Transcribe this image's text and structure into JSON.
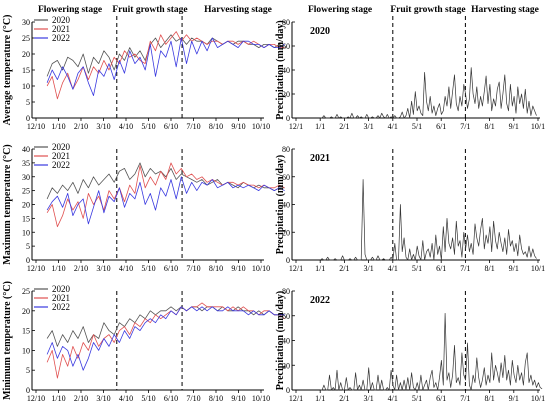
{
  "stage_labels": [
    "Flowering stage",
    "Fruit growth stage",
    "Harvesting stage"
  ],
  "chart_data": [
    {
      "id": "avg",
      "type": "line",
      "ylabel": "Average temperature (°C)",
      "ylim": [
        0,
        30
      ],
      "yticks": [
        0,
        5,
        10,
        15,
        20,
        25,
        30
      ],
      "xticks": [
        "12/10",
        "1/10",
        "2/10",
        "3/10",
        "4/10",
        "5/10",
        "6/10",
        "7/10",
        "8/10",
        "9/10",
        "10/10"
      ],
      "vlines": [
        "3/28",
        "6/25"
      ],
      "series": [
        {
          "name": "2020",
          "color": "#555555",
          "start": "12/25",
          "values": [
            13,
            17,
            18,
            15,
            19,
            18,
            16,
            20,
            14,
            19,
            17,
            21,
            19,
            15,
            20,
            18,
            22,
            19,
            21,
            18,
            23,
            25,
            22,
            24,
            26,
            24,
            25,
            23,
            25,
            24,
            24,
            23,
            25,
            24,
            23,
            24,
            23,
            24,
            24,
            23,
            23,
            22,
            23,
            23,
            22,
            23,
            22
          ]
        },
        {
          "name": "2021",
          "color": "#e05050",
          "start": "12/25",
          "values": [
            10,
            13,
            6,
            11,
            14,
            9,
            12,
            16,
            12,
            16,
            14,
            18,
            15,
            19,
            17,
            21,
            19,
            20,
            18,
            17,
            24,
            21,
            26,
            23,
            25,
            27,
            24,
            26,
            24,
            25,
            24,
            23,
            24,
            24,
            23,
            24,
            24,
            23,
            24,
            23,
            24,
            23,
            22,
            23,
            23,
            22,
            22
          ]
        },
        {
          "name": "2022",
          "color": "#3a3ae0",
          "start": "12/25",
          "values": [
            11,
            15,
            12,
            16,
            13,
            9,
            14,
            16,
            11,
            7,
            15,
            13,
            17,
            12,
            18,
            14,
            21,
            17,
            19,
            15,
            23,
            13,
            21,
            19,
            24,
            16,
            25,
            17,
            24,
            20,
            24,
            21,
            25,
            22,
            23,
            24,
            23,
            22,
            24,
            24,
            23,
            23,
            22,
            23,
            22,
            22,
            23
          ]
        }
      ]
    },
    {
      "id": "max",
      "type": "line",
      "ylabel": "Maximum temperature (°C)",
      "ylim": [
        0,
        40
      ],
      "yticks": [
        0,
        5,
        10,
        15,
        20,
        25,
        30,
        35,
        40
      ],
      "xticks": [
        "12/10",
        "1/10",
        "2/10",
        "3/10",
        "4/10",
        "5/10",
        "6/10",
        "7/10",
        "8/10",
        "9/10",
        "10/10"
      ],
      "vlines": [
        "3/28",
        "6/25"
      ],
      "series": [
        {
          "name": "2020",
          "color": "#555555",
          "start": "12/25",
          "values": [
            22,
            26,
            24,
            27,
            25,
            28,
            24,
            29,
            26,
            30,
            27,
            29,
            31,
            28,
            32,
            33,
            29,
            31,
            35,
            30,
            33,
            31,
            32,
            30,
            33,
            29,
            31,
            30,
            29,
            28,
            29,
            27,
            28,
            29,
            27,
            28,
            27,
            26,
            28,
            27,
            26,
            27,
            26,
            26,
            25,
            26,
            26
          ]
        },
        {
          "name": "2021",
          "color": "#e05050",
          "start": "12/25",
          "values": [
            17,
            20,
            12,
            16,
            22,
            18,
            21,
            15,
            24,
            20,
            23,
            18,
            25,
            22,
            26,
            21,
            27,
            24,
            34,
            26,
            30,
            27,
            32,
            29,
            35,
            31,
            33,
            30,
            31,
            29,
            30,
            28,
            29,
            28,
            27,
            28,
            28,
            27,
            28,
            27,
            27,
            26,
            27,
            26,
            26,
            27,
            26
          ]
        },
        {
          "name": "2022",
          "color": "#3a3ae0",
          "start": "12/25",
          "values": [
            18,
            21,
            23,
            19,
            24,
            16,
            20,
            22,
            13,
            19,
            25,
            17,
            23,
            21,
            26,
            19,
            24,
            22,
            28,
            20,
            24,
            18,
            26,
            23,
            29,
            22,
            30,
            24,
            28,
            25,
            28,
            27,
            29,
            26,
            27,
            28,
            26,
            27,
            26,
            27,
            26,
            25,
            27,
            26,
            25,
            26,
            25
          ]
        }
      ]
    },
    {
      "id": "min",
      "type": "line",
      "ylabel": "Minimum temperature (°C)",
      "ylim": [
        0,
        25
      ],
      "yticks": [
        0,
        5,
        10,
        15,
        20,
        25
      ],
      "xticks": [
        "12/10",
        "1/10",
        "2/10",
        "3/10",
        "4/10",
        "5/10",
        "6/10",
        "7/10",
        "8/10",
        "9/10",
        "10/10"
      ],
      "vlines": [
        "3/28",
        "6/25"
      ],
      "series": [
        {
          "name": "2020",
          "color": "#555555",
          "start": "12/25",
          "values": [
            13,
            15,
            11,
            14,
            12,
            15,
            13,
            16,
            12,
            14,
            13,
            17,
            15,
            14,
            17,
            16,
            18,
            17,
            19,
            18,
            20,
            19,
            20,
            20,
            21,
            20,
            21,
            20,
            21,
            21,
            20,
            21,
            21,
            20,
            21,
            20,
            20,
            21,
            20,
            20,
            19,
            20,
            19,
            20,
            19,
            19,
            19
          ]
        },
        {
          "name": "2021",
          "color": "#e05050",
          "start": "12/25",
          "values": [
            7,
            10,
            3,
            9,
            6,
            11,
            8,
            12,
            10,
            14,
            11,
            13,
            14,
            12,
            15,
            16,
            14,
            17,
            16,
            18,
            17,
            19,
            18,
            19,
            20,
            19,
            21,
            20,
            21,
            21,
            22,
            21,
            21,
            21,
            21,
            20,
            21,
            20,
            21,
            20,
            20,
            19,
            20,
            20,
            19,
            19,
            18
          ]
        },
        {
          "name": "2022",
          "color": "#3a3ae0",
          "start": "12/25",
          "values": [
            9,
            12,
            8,
            11,
            10,
            6,
            9,
            5,
            8,
            12,
            10,
            13,
            11,
            14,
            12,
            15,
            13,
            16,
            15,
            17,
            18,
            17,
            19,
            18,
            20,
            19,
            21,
            20,
            21,
            20,
            21,
            20,
            21,
            20,
            20,
            21,
            20,
            20,
            20,
            19,
            20,
            19,
            19,
            20,
            19,
            19,
            19
          ]
        }
      ]
    },
    {
      "id": "p2020",
      "type": "line",
      "year_label": "2020",
      "ylabel": "Precipitation (mm/day)",
      "ylim": [
        0,
        80
      ],
      "yticks": [
        0,
        20,
        40,
        60,
        80
      ],
      "xticks": [
        "12/1",
        "1/1",
        "2/1",
        "3/1",
        "4/1",
        "5/1",
        "6/1",
        "7/1",
        "8/1",
        "9/1",
        "10/1"
      ],
      "vlines": [
        "4/1",
        "7/1"
      ],
      "series": [
        {
          "name": "2020",
          "color": "#333333",
          "start": "1/1",
          "values": [
            0,
            0,
            2,
            0,
            0,
            0,
            1,
            0,
            0,
            3,
            0,
            1,
            0,
            0,
            0,
            1,
            0,
            4,
            0,
            0,
            2,
            0,
            1,
            0,
            0,
            3,
            0,
            0,
            1,
            0,
            0,
            2,
            0,
            4,
            1,
            0,
            3,
            0,
            1,
            0,
            2,
            0,
            0,
            1,
            5,
            0,
            2,
            8,
            0,
            14,
            3,
            22,
            6,
            10,
            4,
            2,
            38,
            14,
            6,
            18,
            4,
            10,
            2,
            8,
            12,
            3,
            6,
            18,
            10,
            26,
            8,
            22,
            36,
            12,
            6,
            18,
            10,
            28,
            20,
            8,
            16,
            42,
            20,
            12,
            26,
            8,
            18,
            10,
            22,
            35,
            12,
            28,
            6,
            16,
            10,
            24,
            30,
            8,
            20,
            36,
            12,
            6,
            28,
            10,
            18,
            4,
            26,
            12,
            20,
            8,
            24,
            4,
            14,
            2,
            10,
            6,
            2
          ]
        }
      ]
    },
    {
      "id": "p2021",
      "type": "line",
      "year_label": "2021",
      "ylabel": "Precipitation (mm/day)",
      "ylim": [
        0,
        80
      ],
      "yticks": [
        0,
        20,
        40,
        60,
        80
      ],
      "xticks": [
        "12/1",
        "1/1",
        "2/1",
        "3/1",
        "4/1",
        "5/1",
        "6/1",
        "7/1",
        "8/1",
        "9/1",
        "10/1"
      ],
      "vlines": [
        "4/1",
        "7/1"
      ],
      "series": [
        {
          "name": "2021",
          "color": "#333333",
          "start": "1/1",
          "values": [
            0,
            1,
            0,
            0,
            2,
            0,
            0,
            0,
            1,
            0,
            0,
            0,
            3,
            0,
            0,
            0,
            1,
            0,
            0,
            2,
            0,
            0,
            0,
            58,
            4,
            0,
            0,
            0,
            2,
            0,
            0,
            3,
            0,
            0,
            1,
            0,
            0,
            0,
            2,
            0,
            12,
            0,
            0,
            40,
            6,
            16,
            2,
            0,
            8,
            0,
            4,
            0,
            10,
            3,
            0,
            14,
            0,
            6,
            8,
            2,
            12,
            0,
            18,
            4,
            10,
            0,
            24,
            6,
            30,
            12,
            8,
            16,
            4,
            28,
            10,
            14,
            2,
            20,
            8,
            18,
            6,
            12,
            4,
            26,
            16,
            10,
            22,
            30,
            8,
            18,
            12,
            24,
            6,
            28,
            14,
            8,
            20,
            12,
            6,
            16,
            4,
            22,
            10,
            14,
            6,
            12,
            3,
            18,
            8,
            4,
            6,
            2,
            10,
            2,
            8,
            3,
            1
          ]
        }
      ]
    },
    {
      "id": "p2022",
      "type": "line",
      "year_label": "2022",
      "ylabel": "Precipitation (mm/day)",
      "ylim": [
        0,
        80
      ],
      "yticks": [
        0,
        20,
        40,
        60,
        80
      ],
      "xticks": [
        "12/1",
        "1/1",
        "2/1",
        "3/1",
        "4/1",
        "5/1",
        "6/1",
        "7/1",
        "8/1",
        "9/1",
        "10/1"
      ],
      "vlines": [
        "4/1",
        "7/1"
      ],
      "series": [
        {
          "name": "2022",
          "color": "#333333",
          "start": "1/1",
          "values": [
            0,
            0,
            4,
            0,
            0,
            12,
            0,
            2,
            0,
            16,
            0,
            6,
            0,
            0,
            10,
            0,
            2,
            0,
            0,
            14,
            0,
            4,
            0,
            8,
            0,
            0,
            18,
            0,
            6,
            0,
            0,
            12,
            0,
            8,
            0,
            0,
            2,
            0,
            16,
            4,
            0,
            12,
            0,
            6,
            0,
            8,
            0,
            10,
            0,
            14,
            2,
            0,
            6,
            0,
            12,
            0,
            4,
            8,
            0,
            10,
            16,
            2,
            6,
            0,
            10,
            24,
            4,
            62,
            8,
            14,
            2,
            12,
            36,
            6,
            10,
            4,
            30,
            12,
            8,
            38,
            4,
            0,
            12,
            6,
            26,
            10,
            2,
            8,
            18,
            4,
            12,
            6,
            30,
            8,
            20,
            14,
            6,
            22,
            10,
            28,
            8,
            16,
            4,
            24,
            12,
            6,
            20,
            8,
            14,
            4,
            22,
            30,
            6,
            12,
            4,
            8,
            2,
            6,
            2,
            1
          ]
        }
      ]
    }
  ]
}
